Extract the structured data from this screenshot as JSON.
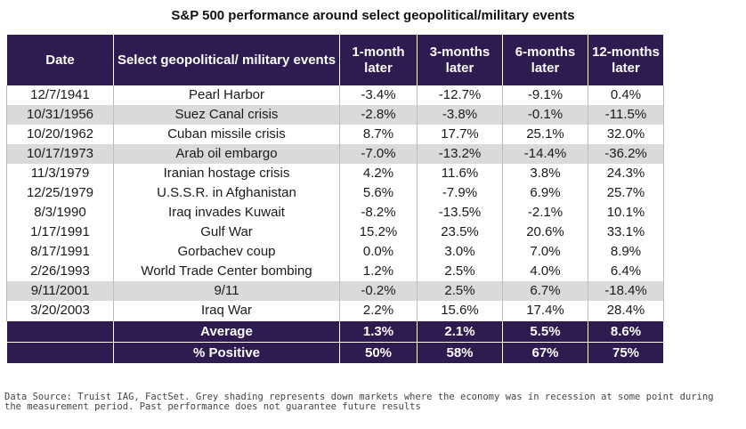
{
  "chart_data": {
    "type": "table",
    "title": "S&P 500 performance around select geopolitical/military events",
    "columns": [
      "Date",
      "Select geopolitical/ military events",
      "1-month later",
      "3-months later",
      "6-months later",
      "12-months later"
    ],
    "rows": [
      {
        "date": "12/7/1941",
        "event": "Pearl Harbor",
        "m1": "-3.4%",
        "m3": "-12.7%",
        "m6": "-9.1%",
        "m12": "0.4%",
        "recession": false
      },
      {
        "date": "10/31/1956",
        "event": "Suez Canal crisis",
        "m1": "-2.8%",
        "m3": "-3.8%",
        "m6": "-0.1%",
        "m12": "-11.5%",
        "recession": true
      },
      {
        "date": "10/20/1962",
        "event": "Cuban missile crisis",
        "m1": "8.7%",
        "m3": "17.7%",
        "m6": "25.1%",
        "m12": "32.0%",
        "recession": false
      },
      {
        "date": "10/17/1973",
        "event": "Arab oil embargo",
        "m1": "-7.0%",
        "m3": "-13.2%",
        "m6": "-14.4%",
        "m12": "-36.2%",
        "recession": true
      },
      {
        "date": "11/3/1979",
        "event": "Iranian hostage crisis",
        "m1": "4.2%",
        "m3": "11.6%",
        "m6": "3.8%",
        "m12": "24.3%",
        "recession": false
      },
      {
        "date": "12/25/1979",
        "event": "U.S.S.R. in Afghanistan",
        "m1": "5.6%",
        "m3": "-7.9%",
        "m6": "6.9%",
        "m12": "25.7%",
        "recession": false
      },
      {
        "date": "8/3/1990",
        "event": "Iraq invades Kuwait",
        "m1": "-8.2%",
        "m3": "-13.5%",
        "m6": "-2.1%",
        "m12": "10.1%",
        "recession": false
      },
      {
        "date": "1/17/1991",
        "event": "Gulf War",
        "m1": "15.2%",
        "m3": "23.5%",
        "m6": "20.6%",
        "m12": "33.1%",
        "recession": false
      },
      {
        "date": "8/17/1991",
        "event": "Gorbachev coup",
        "m1": "0.0%",
        "m3": "3.0%",
        "m6": "7.0%",
        "m12": "8.9%",
        "recession": false
      },
      {
        "date": "2/26/1993",
        "event": "World Trade Center bombing",
        "m1": "1.2%",
        "m3": "2.5%",
        "m6": "4.0%",
        "m12": "6.4%",
        "recession": false
      },
      {
        "date": "9/11/2001",
        "event": "9/11",
        "m1": "-0.2%",
        "m3": "2.5%",
        "m6": "6.7%",
        "m12": "-18.4%",
        "recession": true
      },
      {
        "date": "3/20/2003",
        "event": "Iraq War",
        "m1": "2.2%",
        "m3": "15.6%",
        "m6": "17.4%",
        "m12": "28.4%",
        "recession": false
      }
    ],
    "summary": [
      {
        "label": "Average",
        "m1": "1.3%",
        "m3": "2.1%",
        "m6": "5.5%",
        "m12": "8.6%"
      },
      {
        "label": "% Positive",
        "m1": "50%",
        "m3": "58%",
        "m6": "67%",
        "m12": "75%"
      }
    ],
    "colors": {
      "header": "#2e1b4f",
      "recession_shading": "#dadada"
    }
  },
  "footnote": {
    "line1": "Data Source: Truist IAG, FactSet. Grey shading represents down markets where the economy was in recession at some point during",
    "line2": "the measurement period. Past performance does not guarantee future results"
  }
}
